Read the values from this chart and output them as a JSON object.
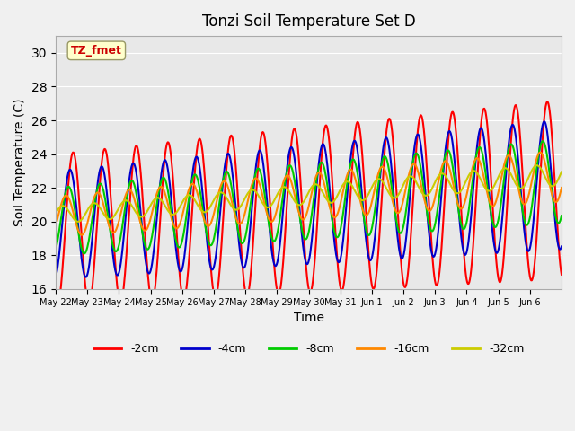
{
  "title": "Tonzi Soil Temperature Set D",
  "xlabel": "Time",
  "ylabel": "Soil Temperature (C)",
  "ylim": [
    16,
    31
  ],
  "yticks": [
    16,
    18,
    20,
    22,
    24,
    26,
    28,
    30
  ],
  "annotation_text": "TZ_fmet",
  "annotation_box_color": "#ffffcc",
  "annotation_text_color": "#cc0000",
  "annotation_border_color": "#999966",
  "plot_bg_color": "#e8e8e8",
  "fig_bg_color": "#f0f0f0",
  "legend_labels": [
    "-2cm",
    "-4cm",
    "-8cm",
    "-16cm",
    "-32cm"
  ],
  "line_colors": [
    "#ff0000",
    "#0000cc",
    "#00cc00",
    "#ff8800",
    "#cccc00"
  ],
  "xtick_labels": [
    "May 22",
    "May 23",
    "May 24",
    "May 25",
    "May 26",
    "May 27",
    "May 28",
    "May 29",
    "May 30",
    "May 31",
    "Jun 1",
    "Jun 2",
    "Jun 3",
    "Jun 4",
    "Jun 5",
    "Jun 6"
  ],
  "n_days": 16,
  "pts_per_day": 48
}
